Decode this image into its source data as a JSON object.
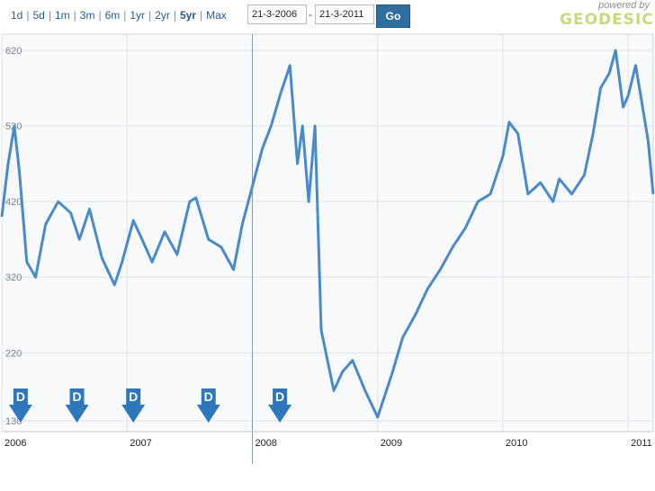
{
  "toolbar": {
    "range_buttons": [
      {
        "label": "1d"
      },
      {
        "label": "5d"
      },
      {
        "label": "1m"
      },
      {
        "label": "3m"
      },
      {
        "label": "6m"
      },
      {
        "label": "1yr"
      },
      {
        "label": "2yr"
      },
      {
        "label": "5yr",
        "active": true
      },
      {
        "label": "Max"
      }
    ],
    "start_date": "21-3-2006",
    "separator": "-",
    "end_date": "21-3-2011",
    "go_label": "Go"
  },
  "branding": {
    "powered_by": "powered by",
    "logo_text": "GEODESIC"
  },
  "colors": {
    "line": "#4a8acb",
    "marker": "#2f77bd",
    "grid": "#dfe4ea",
    "plot_bg": "#f7f9fb"
  },
  "chart_data": {
    "type": "line",
    "title": "",
    "xlabel": "",
    "ylabel": "",
    "ylim": [
      130,
      620
    ],
    "xlim": [
      2006.0,
      2011.2
    ],
    "y_ticks": [
      "620",
      "520",
      "420",
      "320",
      "220",
      "130"
    ],
    "x_ticks": [
      "2006",
      "2007",
      "2008",
      "2009",
      "2010",
      "2011"
    ],
    "grid": true,
    "series": [
      {
        "x": [
          2006.0,
          2006.05,
          2006.1,
          2006.14,
          2006.2,
          2006.27,
          2006.35,
          2006.45,
          2006.55,
          2006.62,
          2006.7,
          2006.8,
          2006.9,
          2006.96,
          2007.05,
          2007.12,
          2007.2,
          2007.3,
          2007.4,
          2007.5,
          2007.55,
          2007.65,
          2007.75,
          2007.85,
          2007.92,
          2008.0,
          2008.08,
          2008.15,
          2008.22,
          2008.3,
          2008.36,
          2008.4,
          2008.45,
          2008.5,
          2008.55,
          2008.65,
          2008.72,
          2008.8,
          2008.9,
          2009.0,
          2009.05,
          2009.12,
          2009.2,
          2009.3,
          2009.4,
          2009.5,
          2009.6,
          2009.7,
          2009.8,
          2009.9,
          2010.0,
          2010.05,
          2010.12,
          2010.2,
          2010.3,
          2010.4,
          2010.45,
          2010.55,
          2010.65,
          2010.72,
          2010.78,
          2010.85,
          2010.9,
          2010.96,
          2011.0,
          2011.06,
          2011.12,
          2011.16,
          2011.2
        ],
        "values": [
          400,
          470,
          520,
          460,
          340,
          320,
          390,
          420,
          405,
          370,
          410,
          345,
          310,
          340,
          395,
          370,
          340,
          380,
          350,
          420,
          425,
          370,
          360,
          330,
          390,
          440,
          490,
          520,
          560,
          600,
          470,
          520,
          420,
          520,
          250,
          170,
          195,
          210,
          170,
          135,
          160,
          195,
          240,
          270,
          305,
          330,
          360,
          385,
          420,
          430,
          480,
          525,
          510,
          430,
          445,
          420,
          450,
          430,
          455,
          510,
          570,
          590,
          620,
          545,
          560,
          600,
          540,
          500,
          430
        ]
      }
    ],
    "annotations": [
      {
        "label": "D",
        "x": 2006.15
      },
      {
        "label": "D",
        "x": 2006.6
      },
      {
        "label": "D",
        "x": 2007.05
      },
      {
        "label": "D",
        "x": 2007.65
      },
      {
        "label": "D",
        "x": 2008.22
      }
    ]
  }
}
